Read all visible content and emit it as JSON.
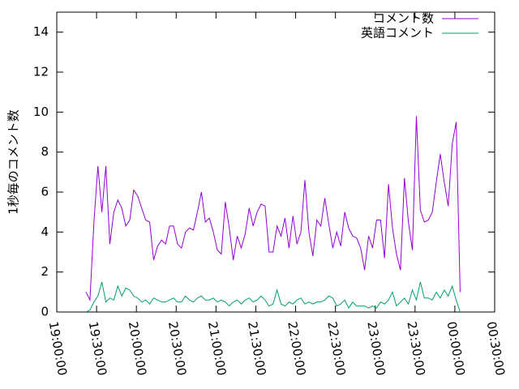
{
  "chart_data": {
    "type": "line",
    "y_label": "1秒毎のコメント数",
    "x": [
      69720,
      69900,
      70080,
      70260,
      70440,
      70620,
      70800,
      70980,
      71160,
      71340,
      71520,
      71700,
      71880,
      72060,
      72240,
      72420,
      72600,
      72780,
      72960,
      73140,
      73320,
      73500,
      73680,
      73860,
      74040,
      74220,
      74400,
      74580,
      74760,
      74940,
      75120,
      75300,
      75480,
      75660,
      75840,
      76020,
      76200,
      76380,
      76560,
      76740,
      76920,
      77100,
      77280,
      77460,
      77640,
      77820,
      78000,
      78180,
      78360,
      78540,
      78720,
      78900,
      79080,
      79260,
      79440,
      79620,
      79800,
      79980,
      80160,
      80340,
      80520,
      80700,
      80880,
      81060,
      81240,
      81420,
      81600,
      81780,
      81960,
      82140,
      82320,
      82500,
      82680,
      82860,
      83040,
      83220,
      83400,
      83580,
      83760,
      83940,
      84120,
      84300,
      84480,
      84660,
      84840,
      85020,
      85200,
      85380,
      85560,
      85740,
      85920,
      86100,
      86280,
      86460,
      86640
    ],
    "series": [
      {
        "name": "コメント数",
        "color": "#9400d3",
        "values": [
          1.0,
          0.6,
          4.5,
          7.3,
          5.0,
          7.3,
          3.4,
          5.0,
          5.6,
          5.2,
          4.3,
          4.6,
          6.1,
          5.8,
          5.2,
          4.6,
          4.5,
          2.6,
          3.3,
          3.6,
          3.4,
          4.3,
          4.3,
          3.4,
          3.2,
          4.0,
          4.2,
          4.1,
          5.0,
          6.0,
          4.5,
          4.7,
          4.0,
          3.1,
          2.9,
          5.5,
          4.2,
          2.6,
          3.8,
          3.2,
          3.9,
          5.2,
          4.3,
          5.0,
          5.4,
          5.3,
          3.0,
          3.0,
          4.3,
          3.8,
          4.7,
          3.2,
          4.8,
          3.4,
          4.0,
          6.6,
          4.0,
          2.8,
          4.6,
          4.3,
          5.7,
          4.4,
          3.2,
          4.0,
          3.3,
          5.0,
          4.2,
          3.8,
          3.7,
          3.2,
          2.1,
          3.8,
          3.2,
          4.6,
          4.6,
          2.7,
          6.4,
          4.2,
          2.9,
          2.1,
          6.7,
          4.5,
          3.1,
          9.8,
          5.1,
          4.5,
          4.6,
          5.0,
          6.5,
          7.9,
          6.5,
          5.3,
          8.4,
          9.5,
          1.0
        ]
      },
      {
        "name": "英語コメント",
        "color": "#009e73",
        "values": [
          0.0,
          0.1,
          0.5,
          0.8,
          1.5,
          0.5,
          0.7,
          0.6,
          1.3,
          0.8,
          1.2,
          1.1,
          0.8,
          0.7,
          0.5,
          0.6,
          0.4,
          0.7,
          0.6,
          0.5,
          0.5,
          0.6,
          0.7,
          0.5,
          0.5,
          0.8,
          0.6,
          0.5,
          0.7,
          0.8,
          0.6,
          0.6,
          0.7,
          0.5,
          0.6,
          0.5,
          0.3,
          0.5,
          0.6,
          0.4,
          0.6,
          0.7,
          0.5,
          0.6,
          0.8,
          0.6,
          0.3,
          0.4,
          1.1,
          0.4,
          0.3,
          0.5,
          0.4,
          0.6,
          0.7,
          0.4,
          0.5,
          0.4,
          0.5,
          0.5,
          0.6,
          0.8,
          0.7,
          0.3,
          0.4,
          0.6,
          0.2,
          0.5,
          0.3,
          0.3,
          0.3,
          0.2,
          0.3,
          0.2,
          0.5,
          0.4,
          0.6,
          1.0,
          0.3,
          0.5,
          0.7,
          0.4,
          1.1,
          0.6,
          1.5,
          0.7,
          0.7,
          0.6,
          1.0,
          0.7,
          1.1,
          0.8,
          1.3,
          0.6,
          0.0
        ]
      }
    ],
    "xlim": [
      68400,
      88200
    ],
    "xticks": [
      {
        "value": 68400,
        "label": "19:00:00"
      },
      {
        "value": 70200,
        "label": "19:30:00"
      },
      {
        "value": 72000,
        "label": "20:00:00"
      },
      {
        "value": 73800,
        "label": "20:30:00"
      },
      {
        "value": 75600,
        "label": "21:00:00"
      },
      {
        "value": 77400,
        "label": "21:30:00"
      },
      {
        "value": 79200,
        "label": "22:00:00"
      },
      {
        "value": 81000,
        "label": "22:30:00"
      },
      {
        "value": 82800,
        "label": "23:00:00"
      },
      {
        "value": 84600,
        "label": "23:30:00"
      },
      {
        "value": 86400,
        "label": "00:00:00"
      },
      {
        "value": 88200,
        "label": "00:30:00"
      }
    ],
    "ylim": [
      0,
      15
    ],
    "yticks": [
      0,
      2,
      4,
      6,
      8,
      10,
      12,
      14
    ],
    "legend": "top-right",
    "grid": false
  }
}
